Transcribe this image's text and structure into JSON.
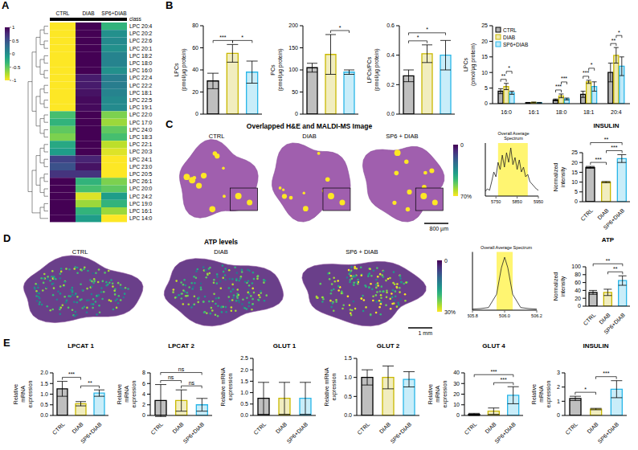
{
  "chart_data": [
    {
      "panel": "A",
      "type": "heatmap",
      "columns": [
        "CTRL",
        "DIAB",
        "SP6+DIAB"
      ],
      "annotation": "class",
      "rows": [
        "LPC 20:4",
        "LPC 20:2",
        "LPC 22:6",
        "LPC 20:1",
        "LPC 18:2",
        "LPC 18:0",
        "LPC 16:0",
        "LPC 22:4",
        "LPC 22:2",
        "LPC 18:1",
        "LPC 22:5",
        "LPC 19:1",
        "LPC 22:0",
        "LPC 17:0",
        "LPC 24:0",
        "LPC 18:3",
        "LPC 22:1",
        "LPC 20:3",
        "LPC 24:1",
        "LPC 23:0",
        "LPC 20:5",
        "LPC 26:1",
        "LPC 20:0",
        "LPC 24:2",
        "LPC 19:0",
        "LPC 16:1",
        "LPC 14:0"
      ],
      "values": [
        [
          -1,
          1,
          -0.3
        ],
        [
          -1,
          1,
          0
        ],
        [
          -1,
          1,
          0.05
        ],
        [
          -1,
          1,
          0
        ],
        [
          -1,
          1,
          0.1
        ],
        [
          -1,
          1,
          0.1
        ],
        [
          -1,
          1,
          0
        ],
        [
          -1,
          0.85,
          0.15
        ],
        [
          -1,
          0.85,
          0.15
        ],
        [
          -1,
          0.9,
          0.1
        ],
        [
          -1,
          0.95,
          0.05
        ],
        [
          -1,
          0.95,
          0.05
        ],
        [
          -0.4,
          1,
          -0.6
        ],
        [
          -0.3,
          1,
          -0.7
        ],
        [
          -0.5,
          1,
          -0.5
        ],
        [
          -0.6,
          1,
          -0.4
        ],
        [
          -0.2,
          1,
          -0.8
        ],
        [
          -0.1,
          1,
          -0.9
        ],
        [
          0.6,
          0.8,
          -1
        ],
        [
          0.5,
          0.9,
          -1
        ],
        [
          0.7,
          0.7,
          -1
        ],
        [
          1,
          -0.3,
          -0.6
        ],
        [
          1,
          -0.4,
          -0.5
        ],
        [
          1,
          -0.9,
          -0.1
        ],
        [
          1,
          -0.7,
          -0.3
        ],
        [
          1,
          -0.3,
          -0.7
        ],
        [
          1,
          -0.1,
          -1
        ]
      ],
      "colorbar": {
        "range": [
          -1,
          1
        ],
        "ticks": [
          1,
          0.5,
          0,
          -0.5,
          -1
        ]
      }
    },
    {
      "panel": "B",
      "type": "bar",
      "y_label": "LPCs (pmol/µg protein)",
      "categories": [
        "CTRL",
        "DIAB",
        "SP6+DIAB"
      ],
      "values": [
        30,
        55,
        38
      ],
      "errors": [
        7,
        8,
        10
      ],
      "colors": [
        "#000000",
        "#c9b800",
        "#29b6e8"
      ],
      "ylim": [
        0,
        80
      ],
      "yticks": [
        0,
        20,
        40,
        60,
        80
      ],
      "tick_labels": "y",
      "significance": [
        {
          "pair": [
            "CTRL",
            "DIAB"
          ],
          "label": "***"
        },
        {
          "pair": [
            "DIAB",
            "SP6+DIAB"
          ],
          "label": "*"
        }
      ]
    },
    {
      "panel": "B",
      "type": "bar",
      "y_label": "PCs (pmol/µg protein)",
      "categories": [
        "CTRL",
        "DIAB",
        "SP6+DIAB"
      ],
      "values": [
        105,
        135,
        95
      ],
      "errors": [
        10,
        45,
        5
      ],
      "colors": [
        "#000000",
        "#c9b800",
        "#29b6e8"
      ],
      "ylim": [
        0,
        200
      ],
      "yticks": [
        0,
        50,
        100,
        150,
        200
      ],
      "tick_labels": "y",
      "significance": [
        {
          "pair": [
            "DIAB",
            "SP6+DIAB"
          ],
          "label": "*"
        }
      ]
    },
    {
      "panel": "B",
      "type": "bar",
      "y_label": "LPCs/PCs (pmol/µg protein)",
      "categories": [
        "CTRL",
        "DIAB",
        "SP6+DIAB"
      ],
      "values": [
        0.26,
        0.41,
        0.4
      ],
      "errors": [
        0.04,
        0.06,
        0.1
      ],
      "colors": [
        "#000000",
        "#c9b800",
        "#29b6e8"
      ],
      "ylim": [
        0,
        0.6
      ],
      "yticks": [
        {
          "value": 0,
          "label": "0.0"
        },
        0.2,
        0.4,
        0.6
      ],
      "tick_labels": "y",
      "significance": [
        {
          "pair": [
            "CTRL",
            "DIAB"
          ],
          "label": "*"
        },
        {
          "pair": [
            "CTRL",
            "SP6+DIAB"
          ],
          "label": "*"
        }
      ]
    },
    {
      "panel": "B",
      "type": "bar",
      "y_label": "LPCs (pmol/µg protein)",
      "categories": [
        "16:0",
        "16:1",
        "18:0",
        "18:1",
        "20:4"
      ],
      "legend": "top-left",
      "series": [
        {
          "name": "CTRL",
          "color": "#000000",
          "values": [
            4,
            0.3,
            1.2,
            3,
            10
          ],
          "errors": [
            0.8,
            0.1,
            0.3,
            1,
            3
          ]
        },
        {
          "name": "DIAB",
          "color": "#c9b800",
          "values": [
            5.5,
            0.4,
            2.5,
            7,
            15.5
          ],
          "errors": [
            1,
            0.1,
            0.6,
            0.5,
            2.5
          ]
        },
        {
          "name": "SP6+DIAB",
          "color": "#29b6e8",
          "values": [
            3.5,
            0.3,
            1.5,
            5.5,
            12
          ],
          "errors": [
            0.5,
            0.1,
            0.3,
            1.5,
            3
          ]
        }
      ],
      "ylim": [
        0,
        25
      ],
      "yticks": [
        0,
        5,
        10,
        15,
        20,
        25
      ],
      "significance": [
        {
          "category": "16:0",
          "pair": [
            "CTRL",
            "DIAB"
          ],
          "label": "**"
        },
        {
          "category": "16:0",
          "pair": [
            "DIAB",
            "SP6+DIAB"
          ],
          "label": "*"
        },
        {
          "category": "18:0",
          "pair": [
            "CTRL",
            "DIAB"
          ],
          "label": "***"
        },
        {
          "category": "18:0",
          "pair": [
            "DIAB",
            "SP6+DIAB"
          ],
          "label": "***"
        },
        {
          "category": "18:1",
          "pair": [
            "CTRL",
            "DIAB"
          ],
          "label": "***"
        },
        {
          "category": "18:1",
          "pair": [
            "DIAB",
            "SP6+DIAB"
          ],
          "label": "*"
        },
        {
          "category": "20:4",
          "pair": [
            "CTRL",
            "DIAB"
          ],
          "label": "**"
        },
        {
          "category": "20:4",
          "pair": [
            "DIAB",
            "SP6+DIAB"
          ],
          "label": "*"
        }
      ]
    },
    {
      "panel": "C",
      "type": "image",
      "title": "Overlapped H&E and MALDI-MS Image",
      "labels": [
        "CTRL",
        "DIAB",
        "SP6 + DIAB"
      ],
      "colorbar": {
        "range": [
          0,
          70
        ],
        "ticks": [
          0,
          {
            "value": 70,
            "label": "70%"
          }
        ]
      },
      "scale_bar": "800 µm"
    },
    {
      "panel": "C",
      "type": "line",
      "title": "Overall Average Spectrum",
      "x": [
        5700,
        5710,
        5720,
        5730,
        5740,
        5750,
        5760,
        5770,
        5780,
        5790,
        5800,
        5810,
        5820,
        5830,
        5840,
        5850,
        5860,
        5870,
        5880,
        5890,
        5900,
        5910,
        5920,
        5930,
        5940,
        5950
      ],
      "values": [
        0.1,
        0.15,
        0.12,
        0.3,
        0.5,
        0.4,
        0.7,
        0.55,
        0.85,
        0.6,
        0.9,
        0.7,
        1.0,
        0.65,
        0.8,
        0.55,
        0.75,
        0.5,
        0.6,
        0.4,
        0.45,
        0.3,
        0.25,
        0.2,
        0.15,
        0.12
      ],
      "xlim": [
        5700,
        5950
      ],
      "xticks": [
        5750,
        5850,
        5950
      ],
      "ylim": [
        0,
        1.1
      ],
      "tick_labels": "x",
      "highlight": [
        5760,
        5900
      ],
      "color": "#222222"
    },
    {
      "panel": "C",
      "type": "bar",
      "title": "INSULIN",
      "y_label": "Normalized intensity",
      "categories": [
        "CTRL",
        "DIAB",
        "SP6+DIAB"
      ],
      "values": [
        17.5,
        10,
        22
      ],
      "errors": [
        0.5,
        0.3,
        2
      ],
      "colors": [
        "#000000",
        "#c9b800",
        "#29b6e8"
      ],
      "ylim": [
        0,
        25
      ],
      "yticks": [
        0,
        5,
        10,
        15,
        20,
        25
      ],
      "significance": [
        {
          "pair": [
            "CTRL",
            "DIAB"
          ],
          "label": "***"
        },
        {
          "pair": [
            "DIAB",
            "SP6+DIAB"
          ],
          "label": "***"
        },
        {
          "pair": [
            "CTRL",
            "SP6+DIAB"
          ],
          "label": "**"
        }
      ]
    },
    {
      "panel": "D",
      "type": "image",
      "title": "ATP levels",
      "labels": [
        "CTRL",
        "DIAB",
        "SP6 + DIAB"
      ],
      "colorbar": {
        "range": [
          0,
          30
        ],
        "ticks": [
          0,
          {
            "value": 30,
            "label": "30%"
          }
        ]
      },
      "scale_bar": "1 mm"
    },
    {
      "panel": "D",
      "type": "line",
      "title": "Overall Average Spectrum",
      "x": [
        505.8,
        505.85,
        505.9,
        505.95,
        505.98,
        506,
        506.02,
        506.05,
        506.1,
        506.15,
        506.2
      ],
      "values": [
        0.02,
        0.03,
        0.05,
        0.3,
        0.8,
        1.0,
        0.8,
        0.3,
        0.05,
        0.03,
        0.02
      ],
      "xlim": [
        505.8,
        506.2
      ],
      "xticks": [
        505.8,
        {
          "value": 506,
          "label": "506.0"
        },
        506.2
      ],
      "ylim": [
        0,
        1.1
      ],
      "tick_labels": "x",
      "highlight": [
        505.95,
        506.05
      ],
      "color": "#222222"
    },
    {
      "panel": "D",
      "type": "bar",
      "title": "ATP",
      "y_label": "Normalized intensity",
      "categories": [
        "CTRL",
        "DIAB",
        "SP6+DIAB"
      ],
      "values": [
        35,
        35,
        65
      ],
      "errors": [
        5,
        8,
        12
      ],
      "colors": [
        "#000000",
        "#c9b800",
        "#29b6e8"
      ],
      "ylim": [
        0,
        100
      ],
      "yticks": [
        0,
        20,
        40,
        60,
        80,
        100
      ],
      "significance": [
        {
          "pair": [
            "DIAB",
            "SP6+DIAB"
          ],
          "label": "**"
        },
        {
          "pair": [
            "CTRL",
            "SP6+DIAB"
          ],
          "label": "**"
        }
      ]
    },
    {
      "panel": "E",
      "type": "bar",
      "title": "LPCAT 1",
      "y_label": "Relative mRNA expression",
      "categories": [
        "CTRL",
        "DIAB",
        "SP6+DIAB"
      ],
      "values": [
        1.25,
        0.55,
        1.05
      ],
      "errors": [
        0.35,
        0.1,
        0.15
      ],
      "colors": [
        "#000000",
        "#c9b800",
        "#29b6e8"
      ],
      "ylim": [
        0,
        2
      ],
      "yticks": [
        {
          "value": 0,
          "label": "0.0"
        },
        0.5,
        {
          "value": 1,
          "label": "1.0"
        },
        1.5,
        {
          "value": 2,
          "label": "2.0"
        }
      ],
      "significance": [
        {
          "pair": [
            "CTRL",
            "DIAB"
          ],
          "label": "***"
        },
        {
          "pair": [
            "DIAB",
            "SP6+DIAB"
          ],
          "label": "**"
        }
      ]
    },
    {
      "panel": "E",
      "type": "bar",
      "title": "LPCAT 2",
      "y_label": "Relative mRNA expression",
      "categories": [
        "CTRL",
        "DIAB",
        "SP6+DIAB"
      ],
      "values": [
        2.8,
        2.8,
        2.0
      ],
      "errors": [
        3,
        2,
        1.2
      ],
      "colors": [
        "#000000",
        "#c9b800",
        "#29b6e8"
      ],
      "ylim": [
        0,
        8
      ],
      "yticks": [
        0,
        2,
        4,
        6,
        8
      ],
      "significance": [
        {
          "pair": [
            "CTRL",
            "DIAB"
          ],
          "label": "ns"
        },
        {
          "pair": [
            "DIAB",
            "SP6+DIAB"
          ],
          "label": "ns"
        },
        {
          "pair": [
            "CTRL",
            "SP6+DIAB"
          ],
          "label": "ns"
        }
      ]
    },
    {
      "panel": "E",
      "type": "bar",
      "title": "GLUT 1",
      "y_label": "Relative mRNA expression",
      "categories": [
        "CTRL",
        "DIAB",
        "SP6+DIAB"
      ],
      "values": [
        0.75,
        0.75,
        0.75
      ],
      "errors": [
        0.7,
        0.7,
        0.7
      ],
      "colors": [
        "#000000",
        "#c9b800",
        "#29b6e8"
      ],
      "ylim": [
        0,
        2.5
      ],
      "yticks": [
        {
          "value": 0,
          "label": "0.0"
        },
        0.5,
        {
          "value": 1,
          "label": "1.0"
        },
        1.5,
        {
          "value": 2,
          "label": "2.0"
        },
        2.5
      ]
    },
    {
      "panel": "E",
      "type": "bar",
      "title": "GLUT 2",
      "y_label": "Relative mRNA expression",
      "categories": [
        "CTRL",
        "DIAB",
        "SP6+DIAB"
      ],
      "values": [
        1.0,
        1.0,
        0.95
      ],
      "errors": [
        0.2,
        0.3,
        0.2
      ],
      "colors": [
        "#000000",
        "#c9b800",
        "#29b6e8"
      ],
      "ylim": [
        0,
        1.5
      ],
      "yticks": [
        {
          "value": 0,
          "label": "0.0"
        },
        0.5,
        {
          "value": 1,
          "label": "1.0"
        },
        1.5
      ]
    },
    {
      "panel": "E",
      "type": "bar",
      "title": "GLUT 4",
      "y_label": "Relative mRNA expression",
      "categories": [
        "CTRL",
        "DIAB",
        "SP6+DIAB"
      ],
      "values": [
        1,
        4,
        19
      ],
      "errors": [
        1,
        3,
        8
      ],
      "colors": [
        "#000000",
        "#c9b800",
        "#29b6e8"
      ],
      "ylim": [
        0,
        40
      ],
      "yticks": [
        0,
        10,
        20,
        30,
        40
      ],
      "significance": [
        {
          "pair": [
            "DIAB",
            "SP6+DIAB"
          ],
          "label": "***"
        },
        {
          "pair": [
            "CTRL",
            "SP6+DIAB"
          ],
          "label": "***"
        }
      ]
    },
    {
      "panel": "E",
      "type": "bar",
      "title": "INSULIN",
      "y_label": "Relative mRNA expression",
      "categories": [
        "CTRL",
        "DIAB",
        "SP6+DIAB"
      ],
      "values": [
        1.2,
        0.45,
        1.85
      ],
      "errors": [
        0.15,
        0.05,
        0.6
      ],
      "colors": [
        "#000000",
        "#c9b800",
        "#29b6e8"
      ],
      "ylim": [
        0,
        3
      ],
      "yticks": [
        0,
        1,
        2,
        3
      ],
      "significance": [
        {
          "pair": [
            "CTRL",
            "DIAB"
          ],
          "label": "*"
        },
        {
          "pair": [
            "DIAB",
            "SP6+DIAB"
          ],
          "label": "***"
        }
      ]
    }
  ]
}
